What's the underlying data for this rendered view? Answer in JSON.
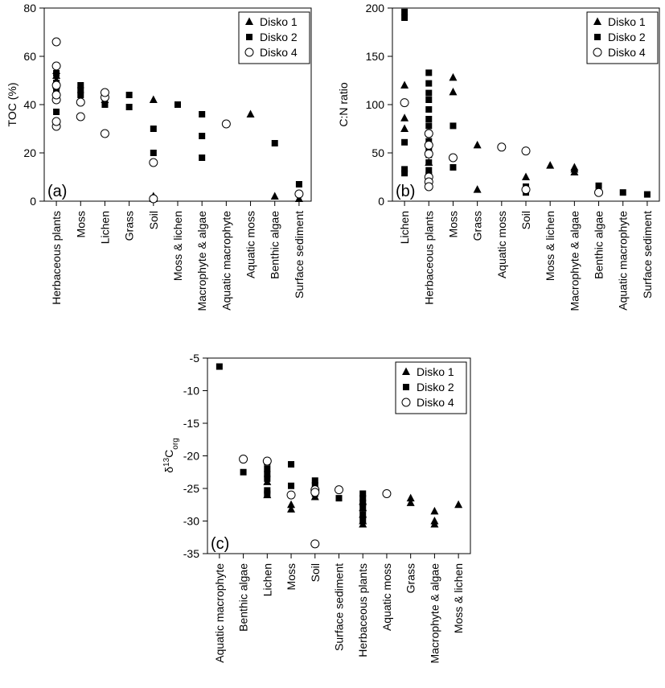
{
  "series_names": [
    "Disko 1",
    "Disko 2",
    "Disko 4"
  ],
  "chart_data": [
    {
      "type": "scatter",
      "panel_label": "(a)",
      "ylabel": "TOC (%)",
      "ylim": [
        0,
        80
      ],
      "yticks": [
        0,
        20,
        40,
        60,
        80
      ],
      "legend": "top-right",
      "categories": [
        "Herbaceous plants",
        "Moss",
        "Lichen",
        "Grass",
        "Soil",
        "Moss & lichen",
        "Macrophyte & algae",
        "Aquatic macrophyte",
        "Aquatic moss",
        "Benthic algae",
        "Surface sediment"
      ],
      "series": [
        {
          "name": "Disko 1",
          "marker": "triangle",
          "points": [
            [
              0,
              45
            ],
            [
              0,
              48
            ],
            [
              0,
              50
            ],
            [
              0,
              52
            ],
            [
              0,
              54
            ],
            [
              2,
              42
            ],
            [
              2,
              44
            ],
            [
              4,
              42
            ],
            [
              4,
              2
            ],
            [
              4,
              1
            ],
            [
              8,
              36
            ],
            [
              9,
              2
            ],
            [
              10,
              1
            ]
          ]
        },
        {
          "name": "Disko 2",
          "marker": "square",
          "points": [
            [
              0,
              37
            ],
            [
              0,
              43
            ],
            [
              0,
              46
            ],
            [
              0,
              49
            ],
            [
              0,
              53
            ],
            [
              1,
              44
            ],
            [
              1,
              46
            ],
            [
              1,
              48
            ],
            [
              2,
              40
            ],
            [
              2,
              43
            ],
            [
              3,
              39
            ],
            [
              3,
              44
            ],
            [
              4,
              30
            ],
            [
              4,
              20
            ],
            [
              4,
              1
            ],
            [
              5,
              40
            ],
            [
              6,
              18
            ],
            [
              6,
              27
            ],
            [
              6,
              36
            ],
            [
              9,
              24
            ],
            [
              10,
              7
            ]
          ]
        },
        {
          "name": "Disko 4",
          "marker": "circle",
          "points": [
            [
              0,
              31
            ],
            [
              0,
              33
            ],
            [
              0,
              42
            ],
            [
              0,
              44
            ],
            [
              0,
              48
            ],
            [
              0,
              56
            ],
            [
              0,
              66
            ],
            [
              1,
              35
            ],
            [
              1,
              41
            ],
            [
              2,
              28
            ],
            [
              2,
              43
            ],
            [
              2,
              45
            ],
            [
              4,
              16
            ],
            [
              4,
              1
            ],
            [
              7,
              32
            ],
            [
              10,
              3
            ]
          ]
        }
      ]
    },
    {
      "type": "scatter",
      "panel_label": "(b)",
      "ylabel": "C:N ratio",
      "ylim": [
        0,
        200
      ],
      "yticks": [
        0,
        50,
        100,
        150,
        200
      ],
      "legend": "top-right",
      "categories": [
        "Lichen",
        "Herbaceous plants",
        "Moss",
        "Grass",
        "Aquatic moss",
        "Soil",
        "Moss & lichen",
        "Macrophyte & algae",
        "Benthic algae",
        "Aquatic macrophyte",
        "Surface sediment"
      ],
      "series": [
        {
          "name": "Disko 1",
          "marker": "triangle",
          "points": [
            [
              0,
              120
            ],
            [
              0,
              86
            ],
            [
              0,
              75
            ],
            [
              1,
              22
            ],
            [
              1,
              40
            ],
            [
              2,
              128
            ],
            [
              2,
              113
            ],
            [
              3,
              58
            ],
            [
              3,
              12
            ],
            [
              5,
              25
            ],
            [
              6,
              37
            ],
            [
              7,
              35
            ],
            [
              7,
              33
            ],
            [
              7,
              30
            ]
          ]
        },
        {
          "name": "Disko 2",
          "marker": "square",
          "points": [
            [
              0,
              196
            ],
            [
              0,
              190
            ],
            [
              0,
              61
            ],
            [
              0,
              33
            ],
            [
              0,
              29
            ],
            [
              1,
              133
            ],
            [
              1,
              122
            ],
            [
              1,
              112
            ],
            [
              1,
              105
            ],
            [
              1,
              95
            ],
            [
              1,
              85
            ],
            [
              1,
              78
            ],
            [
              1,
              70
            ],
            [
              1,
              62
            ],
            [
              1,
              55
            ],
            [
              1,
              48
            ],
            [
              1,
              40
            ],
            [
              1,
              32
            ],
            [
              1,
              27
            ],
            [
              1,
              18
            ],
            [
              2,
              78
            ],
            [
              2,
              35
            ],
            [
              5,
              15
            ],
            [
              5,
              9
            ],
            [
              8,
              16
            ],
            [
              9,
              9
            ],
            [
              10,
              7
            ]
          ]
        },
        {
          "name": "Disko 4",
          "marker": "circle",
          "points": [
            [
              0,
              102
            ],
            [
              1,
              70
            ],
            [
              1,
              58
            ],
            [
              1,
              49
            ],
            [
              1,
              25
            ],
            [
              1,
              20
            ],
            [
              1,
              15
            ],
            [
              2,
              45
            ],
            [
              4,
              56
            ],
            [
              5,
              52
            ],
            [
              5,
              12
            ],
            [
              8,
              9
            ]
          ]
        }
      ]
    },
    {
      "type": "scatter",
      "panel_label": "(c)",
      "ylabel": "δ13Corg",
      "ylim": [
        -35,
        -5
      ],
      "yticks": [
        -5,
        -10,
        -15,
        -20,
        -25,
        -30,
        -35
      ],
      "legend": "top-right",
      "categories": [
        "Aquatic macrophyte",
        "Benthic algae",
        "Lichen",
        "Moss",
        "Soil",
        "Surface sediment",
        "Herbaceous plants",
        "Aquatic moss",
        "Grass",
        "Macrophyte & algae",
        "Moss & lichen"
      ],
      "series": [
        {
          "name": "Disko 1",
          "marker": "triangle",
          "points": [
            [
              2,
              -26.0
            ],
            [
              2,
              -24.0
            ],
            [
              3,
              -27.5
            ],
            [
              3,
              -28.2
            ],
            [
              4,
              -26.3
            ],
            [
              6,
              -27.0
            ],
            [
              6,
              -28.0
            ],
            [
              6,
              -29.0
            ],
            [
              6,
              -30.0
            ],
            [
              6,
              -30.5
            ],
            [
              8,
              -26.5
            ],
            [
              8,
              -27.2
            ],
            [
              9,
              -28.5
            ],
            [
              9,
              -30.0
            ],
            [
              9,
              -30.5
            ],
            [
              10,
              -27.5
            ]
          ]
        },
        {
          "name": "Disko 2",
          "marker": "square",
          "points": [
            [
              0,
              -6.3
            ],
            [
              1,
              -22.5
            ],
            [
              2,
              -21.0
            ],
            [
              2,
              -22.0
            ],
            [
              2,
              -22.8
            ],
            [
              2,
              -23.5
            ],
            [
              2,
              -25.3
            ],
            [
              2,
              -25.8
            ],
            [
              3,
              -21.3
            ],
            [
              3,
              -24.6
            ],
            [
              4,
              -23.8
            ],
            [
              4,
              -24.5
            ],
            [
              4,
              -25.8
            ],
            [
              5,
              -26.5
            ],
            [
              6,
              -25.8
            ],
            [
              6,
              -26.5
            ],
            [
              6,
              -27.2
            ],
            [
              6,
              -28.0
            ],
            [
              6,
              -29.0
            ],
            [
              6,
              -29.8
            ]
          ]
        },
        {
          "name": "Disko 4",
          "marker": "circle",
          "points": [
            [
              1,
              -20.5
            ],
            [
              2,
              -20.8
            ],
            [
              3,
              -26.0
            ],
            [
              4,
              -25.2
            ],
            [
              4,
              -25.6
            ],
            [
              4,
              -33.5
            ],
            [
              5,
              -25.2
            ],
            [
              7,
              -25.8
            ]
          ]
        }
      ]
    }
  ]
}
